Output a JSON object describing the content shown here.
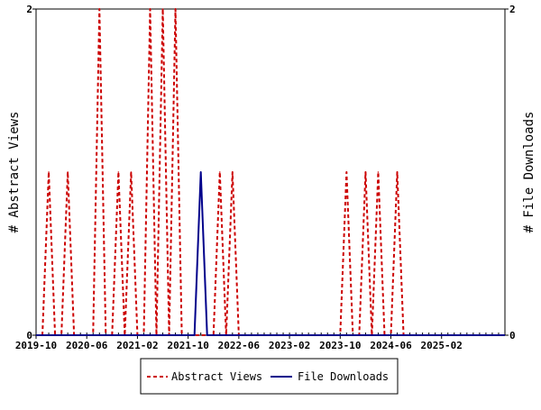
{
  "colors": {
    "abstract_views": "#cc0000",
    "file_downloads": "#00008b",
    "axis": "#000000",
    "background": "#ffffff"
  },
  "chart_data": {
    "type": "line",
    "title": "",
    "xlabel": "",
    "ylabel_left": "# Abstract Views",
    "ylabel_right": "# File Downloads",
    "ylim_left": [
      0,
      2
    ],
    "ylim_right": [
      0,
      2
    ],
    "yticks_left": [
      "0",
      "2"
    ],
    "yticks_right": [
      "0",
      "2"
    ],
    "grid": false,
    "legend_position": "bottom-center",
    "x_tick_labels": [
      "2019-10",
      "2020-06",
      "2021-02",
      "2021-10",
      "2022-06",
      "2023-02",
      "2023-10",
      "2024-06",
      "2025-02"
    ],
    "x_start": "2019-10",
    "x_end": "2025-12",
    "series": [
      {
        "name": "Abstract Views",
        "axis": "left",
        "style": "dashed",
        "color": "#cc0000",
        "peaks": [
          {
            "month": "2019-12",
            "value": 1
          },
          {
            "month": "2020-03",
            "value": 1
          },
          {
            "month": "2020-08",
            "value": 2
          },
          {
            "month": "2020-11",
            "value": 1
          },
          {
            "month": "2021-01",
            "value": 1
          },
          {
            "month": "2021-04",
            "value": 2
          },
          {
            "month": "2021-06",
            "value": 2
          },
          {
            "month": "2021-08",
            "value": 2
          },
          {
            "month": "2022-03",
            "value": 1
          },
          {
            "month": "2022-05",
            "value": 1
          },
          {
            "month": "2023-11",
            "value": 1
          },
          {
            "month": "2024-02",
            "value": 1
          },
          {
            "month": "2024-04",
            "value": 1
          },
          {
            "month": "2024-07",
            "value": 1
          }
        ]
      },
      {
        "name": "File Downloads",
        "axis": "right",
        "style": "solid",
        "color": "#00008b",
        "peaks": [
          {
            "month": "2021-12",
            "value": 1
          }
        ]
      }
    ]
  },
  "legend": {
    "items": [
      {
        "label": "Abstract Views"
      },
      {
        "label": "File Downloads"
      }
    ]
  }
}
